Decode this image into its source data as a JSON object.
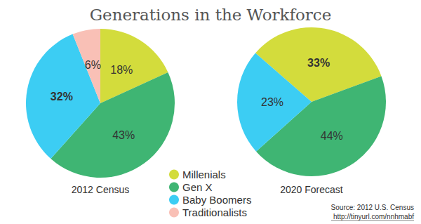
{
  "title": "Generations in the Workforce",
  "source": "Source: 2012 U.S. Census",
  "source_url": "http://tinyurl.com/nnhmabf",
  "legend": "bottom",
  "chart_data": [
    {
      "type": "pie",
      "title": "2012 Census",
      "categories": [
        "Millenials",
        "Gen X",
        "Baby Boomers",
        "Traditionalists"
      ],
      "values": [
        18,
        43,
        32,
        6
      ],
      "value_labels": [
        "18%",
        "43%",
        "32%",
        "6%"
      ],
      "colors": [
        "#d3dc3c",
        "#3fb573",
        "#3ccdf3",
        "#f9c0b6"
      ],
      "data_labels": true
    },
    {
      "type": "pie",
      "title": "2020 Forecast",
      "categories": [
        "Millenials",
        "Gen X",
        "Baby Boomers"
      ],
      "values": [
        33,
        44,
        23
      ],
      "value_labels": [
        "33%",
        "44%",
        "23%"
      ],
      "colors": [
        "#d3dc3c",
        "#3fb573",
        "#3ccdf3"
      ],
      "data_labels": true
    }
  ]
}
